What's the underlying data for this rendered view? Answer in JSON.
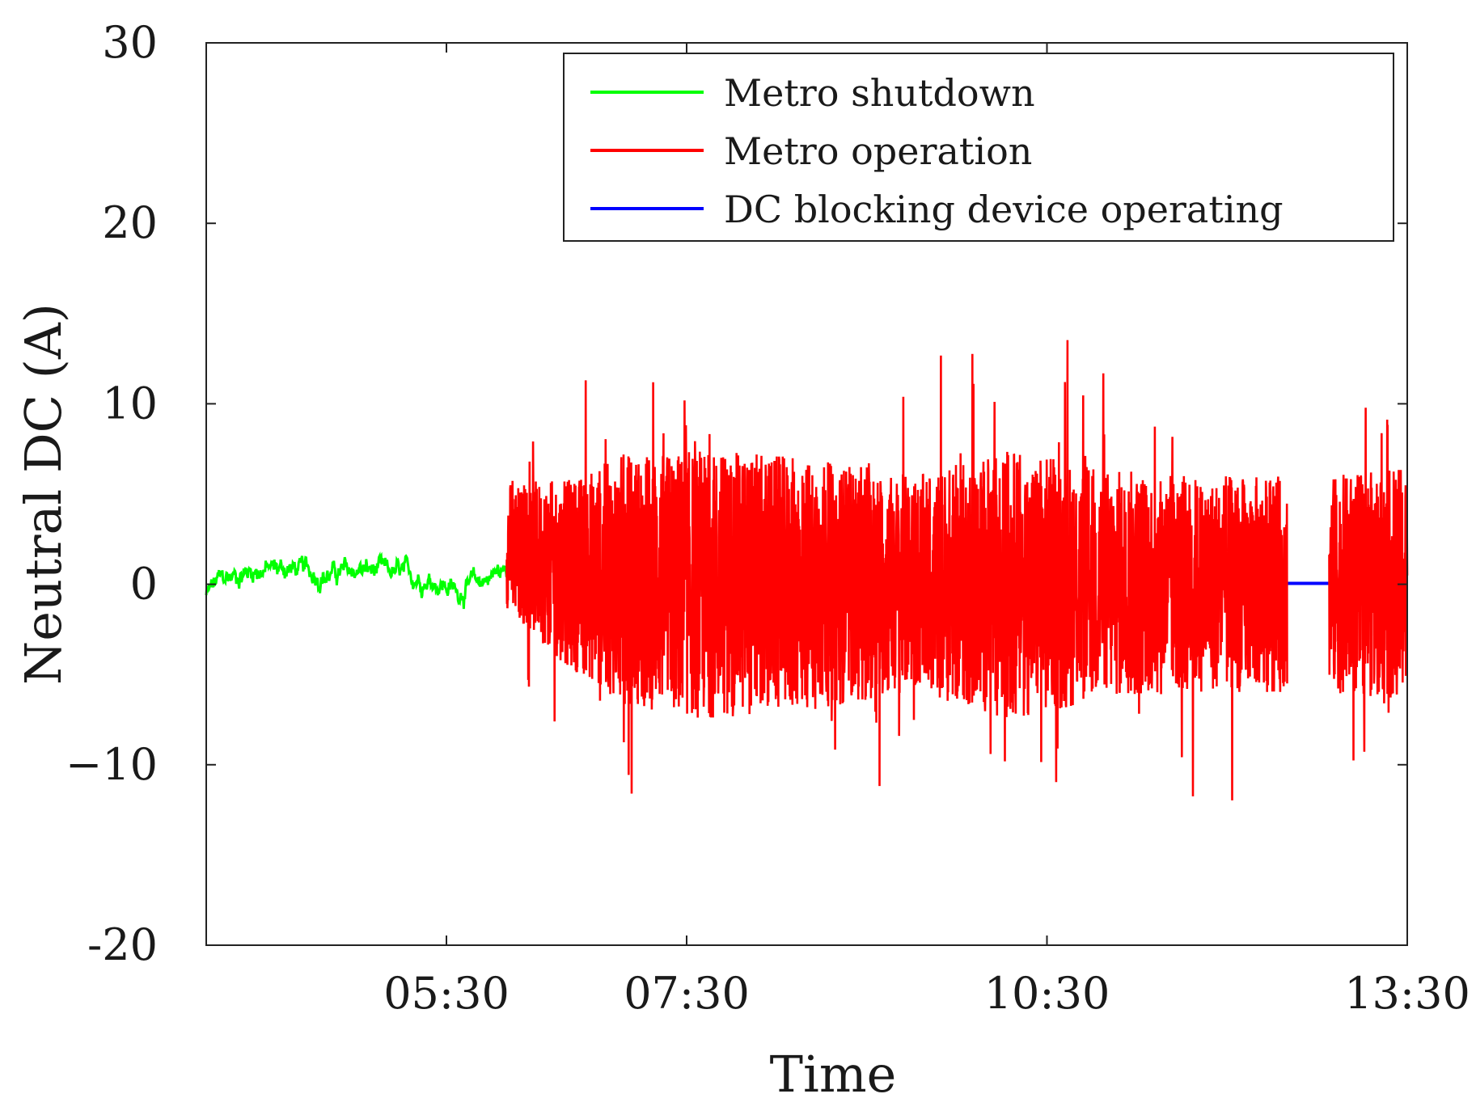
{
  "chart_data": {
    "type": "line",
    "xlabel": "Time",
    "ylabel": "Neutral DC (A)",
    "ylim": [
      -20,
      30
    ],
    "yticks": [
      30,
      20,
      10,
      0,
      -10,
      -20
    ],
    "ytick_labels": [
      "30",
      "20",
      "10",
      "0",
      "−10",
      "-20"
    ],
    "xlim": [
      3.5,
      13.5
    ],
    "xticks": [
      5.5,
      7.5,
      10.5,
      13.5
    ],
    "xtick_labels": [
      "05:30",
      "07:30",
      "10:30",
      "13:30"
    ],
    "grid": false,
    "legend": {
      "position": "top-right",
      "entries": [
        "Metro shutdown",
        "Metro operation",
        "DC blocking device operating"
      ]
    },
    "series": [
      {
        "name": "Metro shutdown",
        "color": "#00ff00",
        "segments": [
          [
            3.5,
            6.0
          ]
        ],
        "profile": [
          [
            3.5,
            -0.6
          ],
          [
            3.6,
            0.2
          ],
          [
            3.9,
            0.8
          ],
          [
            4.2,
            0.9
          ],
          [
            4.5,
            0.5
          ],
          [
            4.8,
            0.8
          ],
          [
            5.1,
            0.6
          ],
          [
            5.4,
            0.2
          ],
          [
            5.6,
            -0.4
          ],
          [
            5.9,
            0.6
          ],
          [
            6.2,
            1.0
          ],
          [
            6.5,
            2.2
          ],
          [
            6.6,
            3.0
          ]
        ],
        "noise": 0.6
      },
      {
        "name": "Metro operation",
        "color": "#ff0000",
        "segments": [
          [
            6.0,
            12.5
          ],
          [
            12.85,
            13.5
          ]
        ],
        "profile": [
          [
            6.0,
            2.2
          ],
          [
            6.5,
            0.6
          ],
          [
            7.5,
            0.0
          ],
          [
            9.5,
            0.0
          ],
          [
            12.5,
            0.0
          ],
          [
            13.5,
            0.0
          ]
        ],
        "envelope": [
          [
            6.0,
            3.5
          ],
          [
            6.6,
            5.5
          ],
          [
            7.0,
            7.0
          ],
          [
            7.6,
            7.5
          ],
          [
            8.5,
            7.0
          ],
          [
            9.4,
            6.0
          ],
          [
            10.2,
            7.5
          ],
          [
            11.0,
            6.5
          ],
          [
            11.8,
            6.0
          ],
          [
            12.5,
            6.0
          ],
          [
            12.85,
            6.0
          ],
          [
            13.5,
            6.5
          ]
        ],
        "min": -15.0,
        "max": 17.3
      },
      {
        "name": "DC blocking device operating",
        "color": "#0000ff",
        "segments": [
          [
            12.5,
            12.85
          ]
        ],
        "value": 0.05
      }
    ]
  }
}
